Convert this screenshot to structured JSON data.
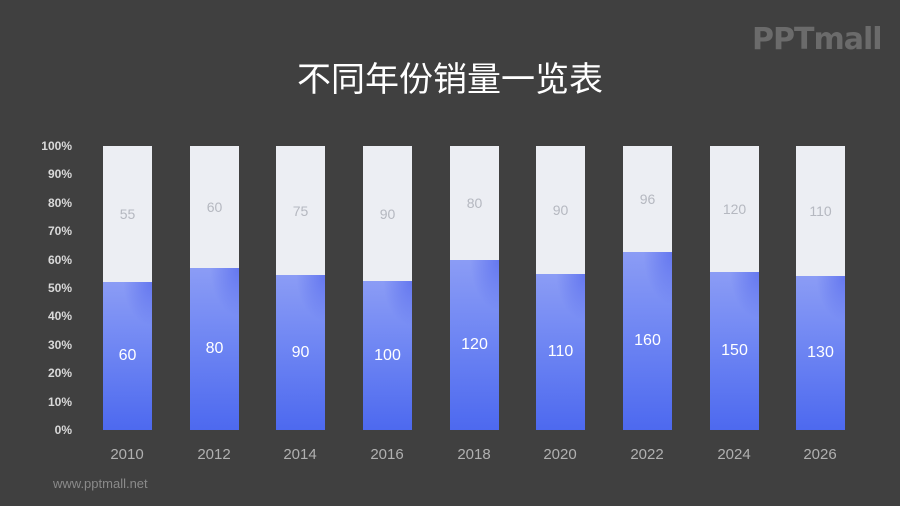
{
  "title": "不同年份销量一览表",
  "logo": "PPTmall",
  "footer": "www.pptmall.net",
  "colors": {
    "background": "#404040",
    "series_bottom": "#5a73f0",
    "series_top": "#eceef3"
  },
  "chart_data": {
    "type": "bar",
    "stacked": "percent",
    "title": "不同年份销量一览表",
    "xlabel": "",
    "ylabel": "",
    "ylim": [
      0,
      100
    ],
    "yticks": [
      "0%",
      "10%",
      "20%",
      "30%",
      "40%",
      "50%",
      "60%",
      "70%",
      "80%",
      "90%",
      "100%"
    ],
    "categories": [
      "2010",
      "2012",
      "2014",
      "2016",
      "2018",
      "2020",
      "2022",
      "2024",
      "2026"
    ],
    "series": [
      {
        "name": "bottom",
        "color": "#5a73f0",
        "values": [
          60,
          80,
          90,
          100,
          120,
          110,
          160,
          150,
          130
        ]
      },
      {
        "name": "top",
        "color": "#eceef3",
        "values": [
          55,
          60,
          75,
          90,
          80,
          90,
          96,
          120,
          110
        ]
      }
    ],
    "grid": false,
    "legend": "none"
  },
  "yticks": [
    "100%",
    "90%",
    "80%",
    "70%",
    "60%",
    "50%",
    "40%",
    "30%",
    "20%",
    "10%",
    "0%"
  ],
  "bars": [
    {
      "year": "2010",
      "bottom": "60",
      "top": "55"
    },
    {
      "year": "2012",
      "bottom": "80",
      "top": "60"
    },
    {
      "year": "2014",
      "bottom": "90",
      "top": "75"
    },
    {
      "year": "2016",
      "bottom": "100",
      "top": "90"
    },
    {
      "year": "2018",
      "bottom": "120",
      "top": "80"
    },
    {
      "year": "2020",
      "bottom": "110",
      "top": "90"
    },
    {
      "year": "2022",
      "bottom": "160",
      "top": "96"
    },
    {
      "year": "2024",
      "bottom": "150",
      "top": "120"
    },
    {
      "year": "2026",
      "bottom": "130",
      "top": "110"
    }
  ]
}
